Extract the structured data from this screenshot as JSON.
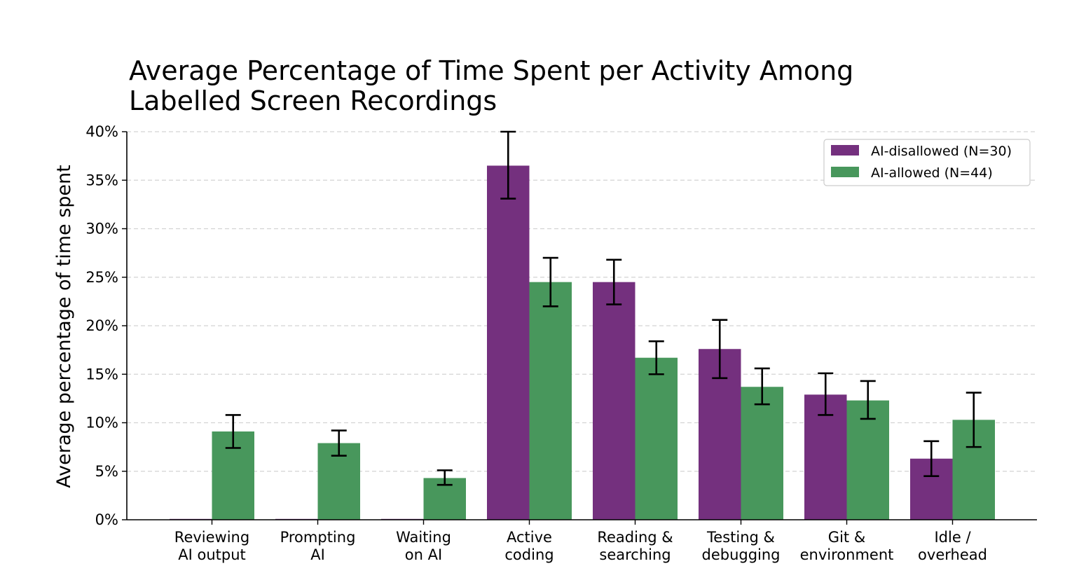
{
  "chart_data": {
    "type": "bar",
    "title": [
      "Average Percentage of Time Spent per Activity Among",
      "Labelled Screen Recordings"
    ],
    "ylabel": "Average percentage of time spent",
    "xlabel": "",
    "ylim": [
      0,
      40
    ],
    "yticks": [
      0,
      5,
      10,
      15,
      20,
      25,
      30,
      35,
      40
    ],
    "ytick_labels": [
      "0%",
      "5%",
      "10%",
      "15%",
      "20%",
      "25%",
      "30%",
      "35%",
      "40%"
    ],
    "grid": "horizontal dashed",
    "legend_position": "top-right",
    "categories": [
      [
        "Reviewing",
        "AI output"
      ],
      [
        "Prompting",
        "AI"
      ],
      [
        "Waiting",
        "on AI"
      ],
      [
        "Active",
        "coding"
      ],
      [
        "Reading &",
        "searching"
      ],
      [
        "Testing &",
        "debugging"
      ],
      [
        "Git &",
        "environment"
      ],
      [
        "Idle /",
        "overhead"
      ]
    ],
    "series": [
      {
        "name": "AI-disallowed (N=30)",
        "color": "#74307e",
        "values": [
          0,
          0,
          0,
          36.5,
          24.5,
          17.6,
          12.9,
          6.3
        ],
        "err_low": [
          0,
          0,
          0,
          33.1,
          22.2,
          14.6,
          10.8,
          4.5
        ],
        "err_high": [
          0,
          0,
          0,
          40.0,
          26.8,
          20.6,
          15.1,
          8.1
        ]
      },
      {
        "name": "AI-allowed (N=44)",
        "color": "#48975c",
        "values": [
          9.1,
          7.9,
          4.3,
          24.5,
          16.7,
          13.7,
          12.3,
          10.3
        ],
        "err_low": [
          7.4,
          6.6,
          3.6,
          22.0,
          15.0,
          11.9,
          10.4,
          7.5
        ],
        "err_high": [
          10.8,
          9.2,
          5.1,
          27.0,
          18.4,
          15.6,
          14.3,
          13.1
        ]
      }
    ]
  }
}
